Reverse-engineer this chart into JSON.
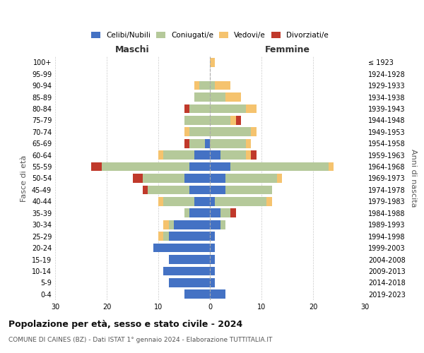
{
  "age_groups": [
    "0-4",
    "5-9",
    "10-14",
    "15-19",
    "20-24",
    "25-29",
    "30-34",
    "35-39",
    "40-44",
    "45-49",
    "50-54",
    "55-59",
    "60-64",
    "65-69",
    "70-74",
    "75-79",
    "80-84",
    "85-89",
    "90-94",
    "95-99",
    "100+"
  ],
  "birth_years": [
    "2019-2023",
    "2014-2018",
    "2009-2013",
    "2004-2008",
    "1999-2003",
    "1994-1998",
    "1989-1993",
    "1984-1988",
    "1979-1983",
    "1974-1978",
    "1969-1973",
    "1964-1968",
    "1959-1963",
    "1954-1958",
    "1949-1953",
    "1944-1948",
    "1939-1943",
    "1934-1938",
    "1929-1933",
    "1924-1928",
    "≤ 1923"
  ],
  "male_celibi": [
    5,
    8,
    9,
    8,
    11,
    8,
    7,
    4,
    3,
    4,
    5,
    4,
    3,
    1,
    0,
    0,
    0,
    0,
    0,
    0,
    0
  ],
  "male_coniugati": [
    0,
    0,
    0,
    0,
    0,
    1,
    1,
    1,
    6,
    8,
    8,
    17,
    6,
    3,
    4,
    5,
    4,
    3,
    2,
    0,
    0
  ],
  "male_vedovi": [
    0,
    0,
    0,
    0,
    0,
    1,
    1,
    0,
    1,
    0,
    0,
    0,
    1,
    0,
    1,
    0,
    0,
    0,
    1,
    0,
    0
  ],
  "male_divorziati": [
    0,
    0,
    0,
    0,
    0,
    0,
    0,
    0,
    0,
    1,
    2,
    2,
    0,
    1,
    0,
    0,
    1,
    0,
    0,
    0,
    0
  ],
  "female_celibi": [
    3,
    1,
    1,
    1,
    1,
    1,
    2,
    2,
    1,
    3,
    3,
    4,
    2,
    0,
    0,
    0,
    0,
    0,
    0,
    0,
    0
  ],
  "female_coniugati": [
    0,
    0,
    0,
    0,
    0,
    0,
    1,
    2,
    10,
    9,
    10,
    19,
    5,
    7,
    8,
    4,
    7,
    3,
    1,
    0,
    0
  ],
  "female_vedovi": [
    0,
    0,
    0,
    0,
    0,
    0,
    0,
    0,
    1,
    0,
    1,
    1,
    1,
    1,
    1,
    1,
    2,
    3,
    3,
    0,
    1
  ],
  "female_divorziati": [
    0,
    0,
    0,
    0,
    0,
    0,
    0,
    1,
    0,
    0,
    0,
    0,
    1,
    0,
    0,
    1,
    0,
    0,
    0,
    0,
    0
  ],
  "color_celibi": "#4472c4",
  "color_coniugati": "#b5c99a",
  "color_vedovi": "#f5c36e",
  "color_divorziati": "#c0392b",
  "title": "Popolazione per età, sesso e stato civile - 2024",
  "subtitle": "COMUNE DI CAINES (BZ) - Dati ISTAT 1° gennaio 2024 - Elaborazione TUTTITALIA.IT",
  "ylabel_left": "Fasce di età",
  "ylabel_right": "Anni di nascita",
  "xlabel_left": "Maschi",
  "xlabel_right": "Femmine",
  "xlim": 30,
  "background_color": "#ffffff",
  "grid_color": "#cccccc"
}
